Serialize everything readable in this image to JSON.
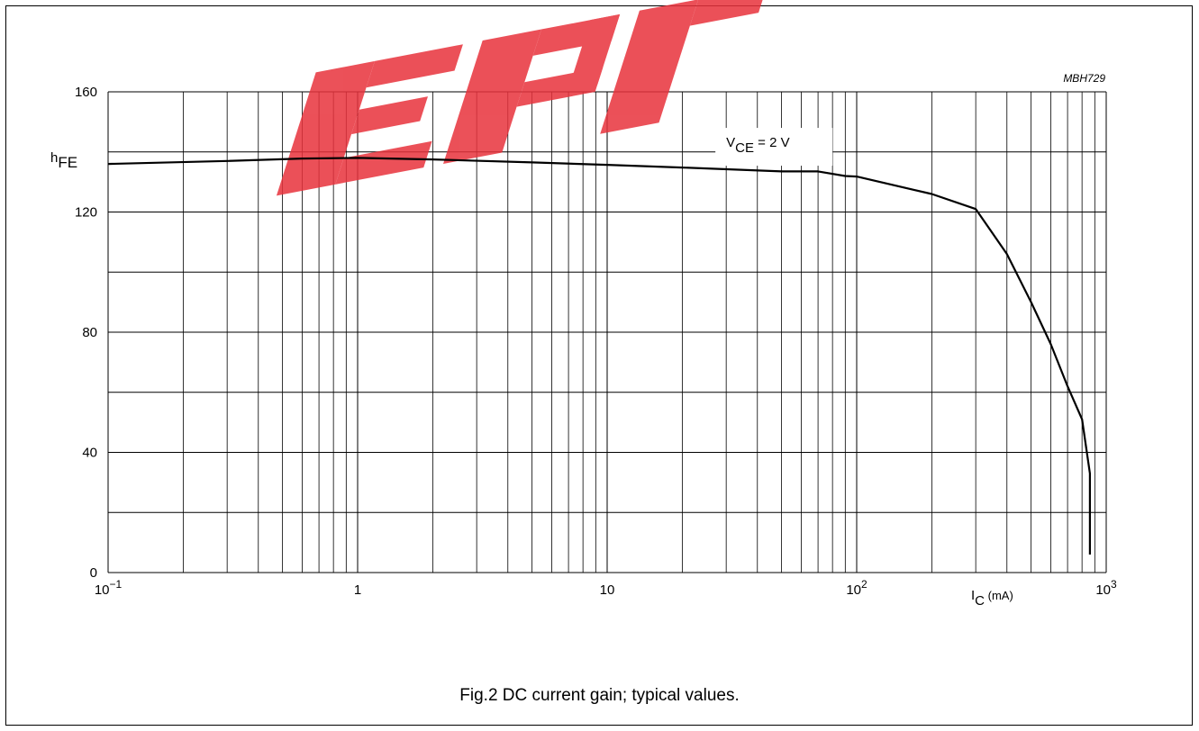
{
  "code_label": "MBH729",
  "caption": "Fig.2  DC current gain; typical values.",
  "watermark": {
    "color": "#e8323c"
  },
  "chart_data": {
    "type": "line",
    "x_scale": "log",
    "xlim": [
      0.1,
      1000
    ],
    "ylim": [
      0,
      160
    ],
    "grid": true,
    "y_ticks": [
      0,
      40,
      80,
      120,
      160
    ],
    "y_tick_labels": [
      "0",
      "40",
      "80",
      "120",
      "160"
    ],
    "x_ticks": [
      0.1,
      1,
      10,
      100,
      1000
    ],
    "x_tick_labels": [
      {
        "base": "10",
        "sup": "−1"
      },
      {
        "base": "1",
        "sup": ""
      },
      {
        "base": "10",
        "sup": ""
      },
      {
        "base": "10",
        "sup": "2"
      },
      {
        "base": "10",
        "sup": "3"
      }
    ],
    "ylabel": {
      "base": "h",
      "sub": "FE"
    },
    "xlabel": {
      "base": "I",
      "sub": "C",
      "unit": " (mA)"
    },
    "annotation": {
      "base": "V",
      "sub": "CE",
      "rest": " = 2 V",
      "x": 30,
      "y": 142
    },
    "series": [
      {
        "x": [
          0.1,
          0.3,
          0.6,
          1,
          2,
          5,
          10,
          20,
          50,
          70,
          90,
          100,
          200,
          300,
          400,
          500,
          600,
          700,
          800,
          860,
          860
        ],
        "y": [
          136,
          137,
          137.8,
          138,
          137.5,
          136.5,
          135.7,
          134.8,
          133.5,
          133.5,
          132,
          131.8,
          126,
          121,
          106,
          90,
          76,
          62,
          51,
          33,
          6
        ]
      }
    ]
  }
}
